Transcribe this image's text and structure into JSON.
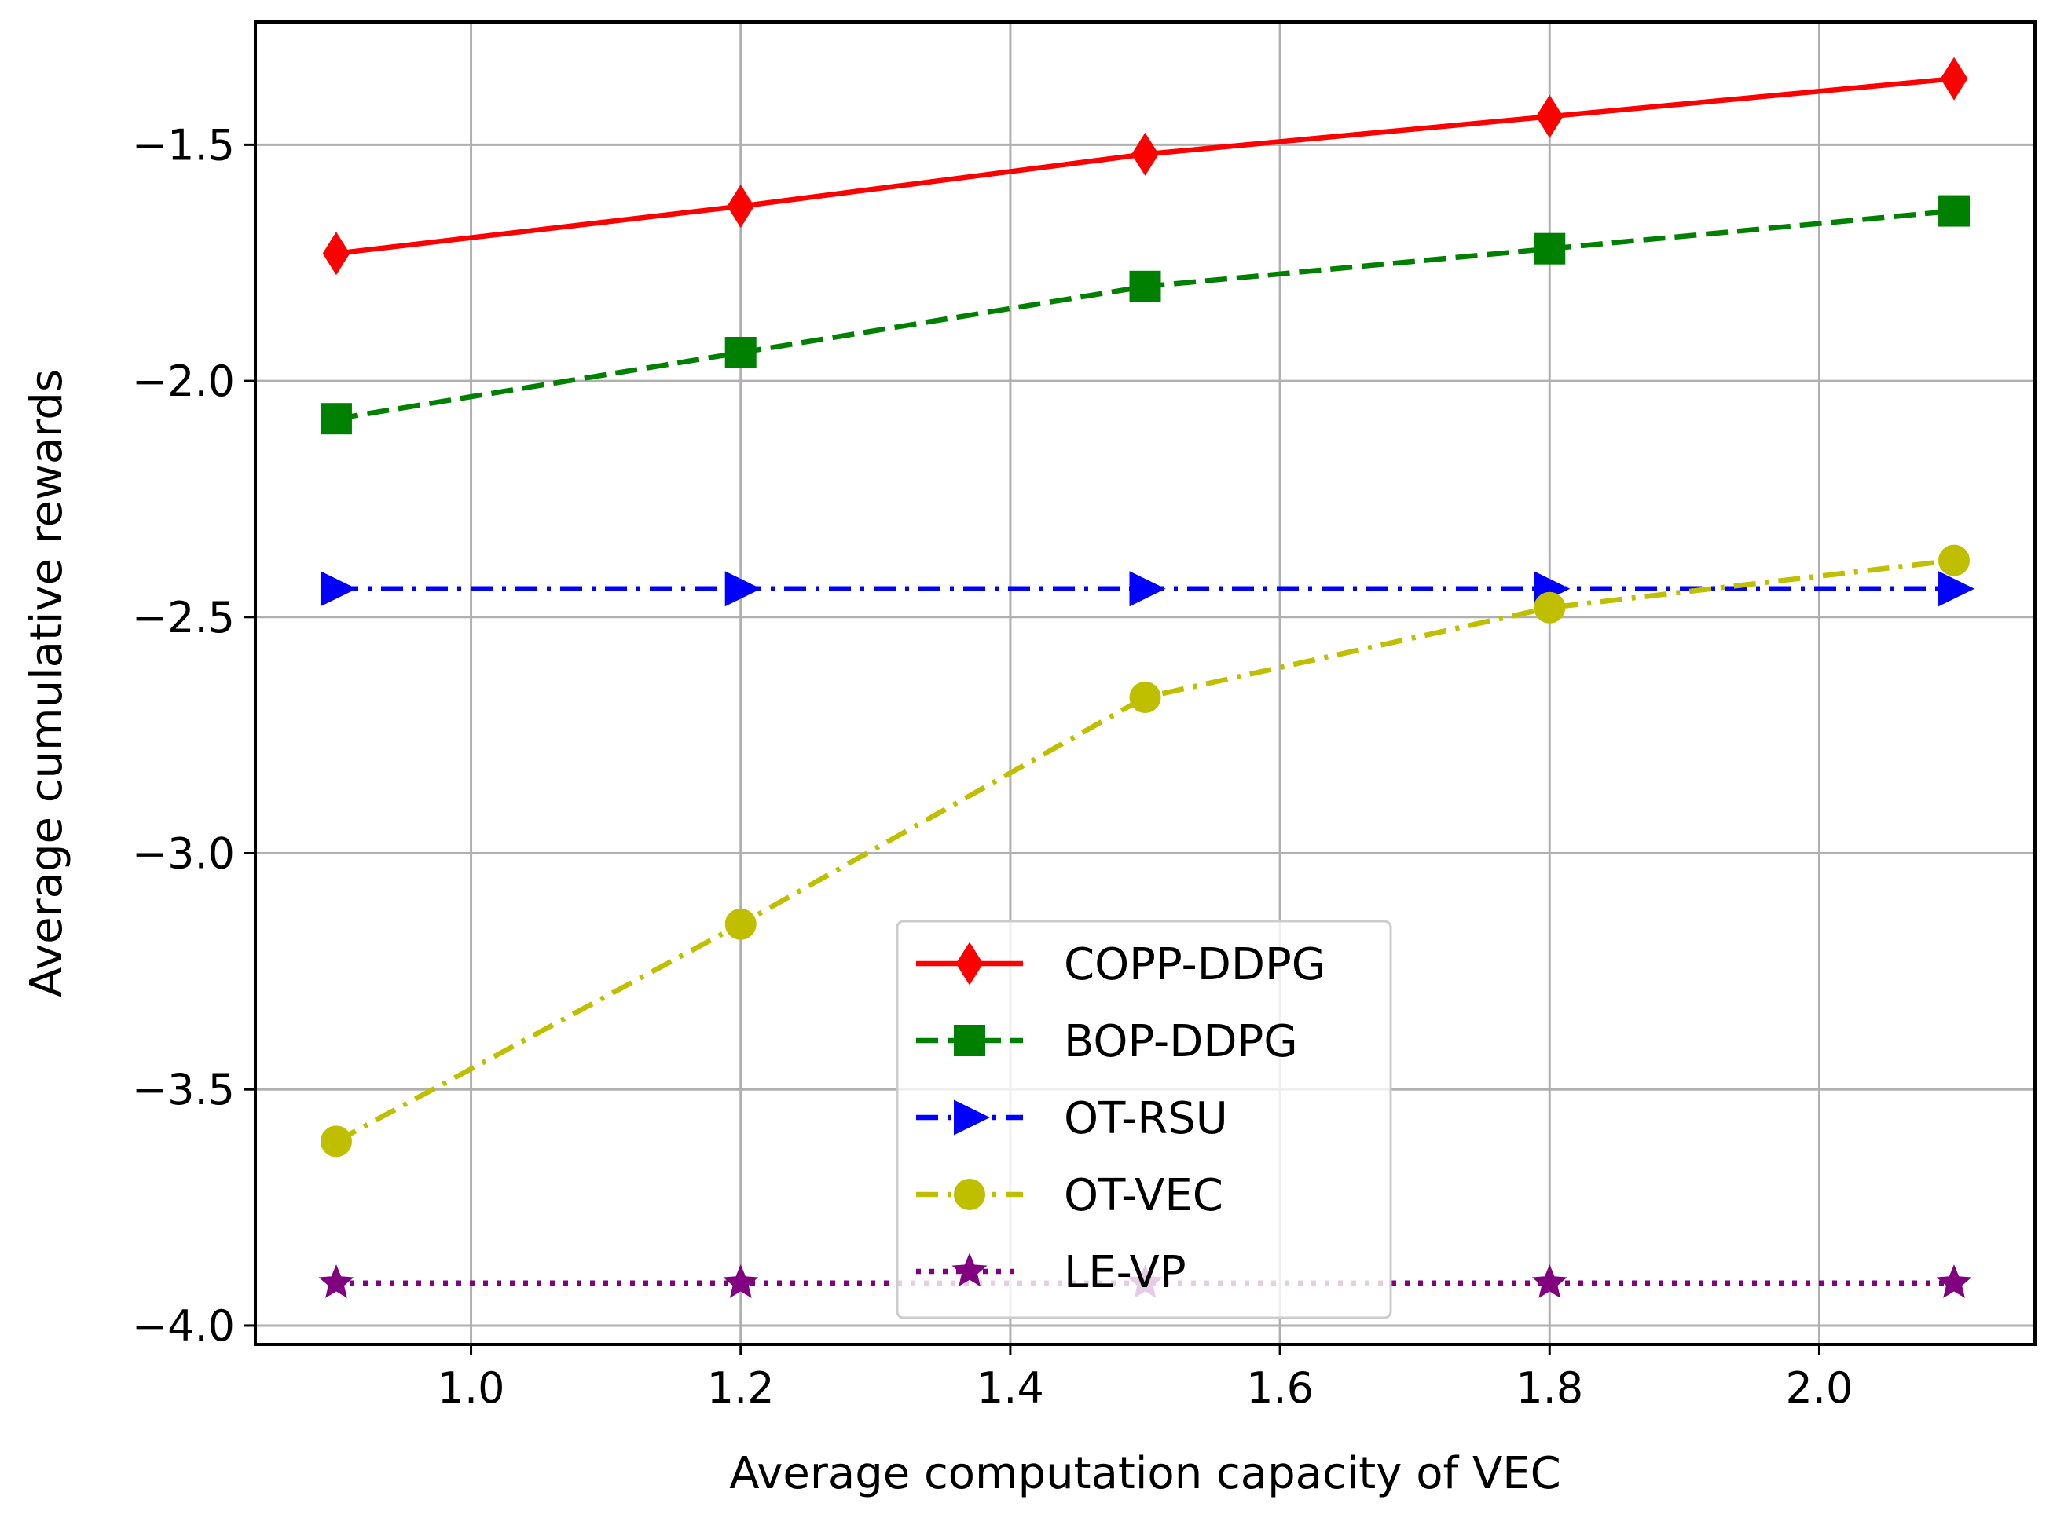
{
  "chart_data": {
    "type": "line",
    "title": "",
    "xlabel": "Average computation capacity of VEC",
    "ylabel": "Average cumulative rewards",
    "x": [
      0.9,
      1.2,
      1.5,
      1.8,
      2.1
    ],
    "xlim": [
      0.84,
      2.16
    ],
    "ylim": [
      -4.04,
      -1.24
    ],
    "xticks": [
      1.0,
      1.2,
      1.4,
      1.6,
      1.8,
      2.0
    ],
    "xtick_labels": [
      "1.0",
      "1.2",
      "1.4",
      "1.6",
      "1.8",
      "2.0"
    ],
    "yticks": [
      -1.5,
      -2.0,
      -2.5,
      -3.0,
      -3.5,
      -4.0
    ],
    "ytick_labels": [
      "−1.5",
      "−2.0",
      "−2.5",
      "−3.0",
      "−3.5",
      "−4.0"
    ],
    "grid": true,
    "legend_position": "bottom-center",
    "series": [
      {
        "name": "COPP-DDPG",
        "values": [
          -1.73,
          -1.63,
          -1.52,
          -1.44,
          -1.36
        ],
        "color": "#ff0000",
        "marker": "diamond",
        "dash": "solid"
      },
      {
        "name": "BOP-DDPG",
        "values": [
          -2.08,
          -1.94,
          -1.8,
          -1.72,
          -1.64
        ],
        "color": "#008000",
        "marker": "square",
        "dash": "dashed"
      },
      {
        "name": "OT-RSU",
        "values": [
          -2.44,
          -2.44,
          -2.44,
          -2.44,
          -2.44
        ],
        "color": "#0000ff",
        "marker": "triangle-right",
        "dash": "dashdot"
      },
      {
        "name": "OT-VEC",
        "values": [
          -3.61,
          -3.15,
          -2.67,
          -2.48,
          -2.38
        ],
        "color": "#bfbf00",
        "marker": "circle",
        "dash": "dashdot"
      },
      {
        "name": "LE-VP",
        "values": [
          -3.91,
          -3.91,
          -3.91,
          -3.91,
          -3.91
        ],
        "color": "#800080",
        "marker": "star",
        "dash": "dotted"
      }
    ]
  }
}
